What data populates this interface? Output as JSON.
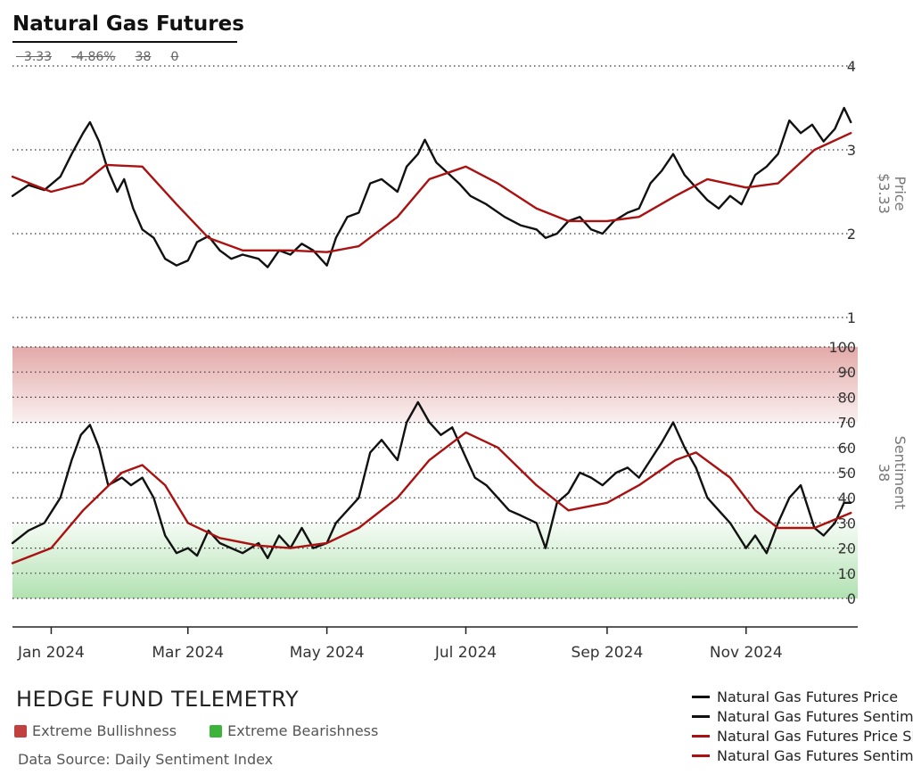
{
  "title": "Natural Gas Futures",
  "stats": [
    "3.33",
    "-4.86%",
    "38",
    "0"
  ],
  "brand": "HEDGE FUND TELEMETRY",
  "zones": [
    {
      "label": "Extreme Bullishness",
      "color": "#c0413f"
    },
    {
      "label": "Extreme Bearishness",
      "color": "#3cb43c"
    }
  ],
  "source": "Data Source: Daily Sentiment Index",
  "legend": [
    {
      "label": "Natural Gas Futures Price",
      "color": "#111111"
    },
    {
      "label": "Natural Gas Futures Sentiment",
      "color": "#111111"
    },
    {
      "label": "Natural Gas Futures Price SMA",
      "color": "#aa1111"
    },
    {
      "label": "Natural Gas Futures Sentiment SMA",
      "color": "#aa1111"
    }
  ],
  "chart_data": [
    {
      "type": "line",
      "ylabel": "Price",
      "ylabel_value": "$3.33",
      "ylim": [
        1,
        4
      ],
      "yticks": [
        1,
        2,
        3,
        4
      ],
      "x_range": [
        "2023-12-15",
        "2024-12-20"
      ],
      "grid": "dotted-horizontal",
      "series": [
        {
          "name": "Natural Gas Futures Price",
          "color": "#111111",
          "points": [
            [
              "2023-12-15",
              2.45
            ],
            [
              "2023-12-22",
              2.58
            ],
            [
              "2023-12-29",
              2.52
            ],
            [
              "2024-01-05",
              2.68
            ],
            [
              "2024-01-10",
              2.95
            ],
            [
              "2024-01-15",
              3.2
            ],
            [
              "2024-01-18",
              3.33
            ],
            [
              "2024-01-22",
              3.1
            ],
            [
              "2024-01-26",
              2.75
            ],
            [
              "2024-01-30",
              2.5
            ],
            [
              "2024-02-02",
              2.65
            ],
            [
              "2024-02-06",
              2.3
            ],
            [
              "2024-02-10",
              2.05
            ],
            [
              "2024-02-15",
              1.95
            ],
            [
              "2024-02-20",
              1.7
            ],
            [
              "2024-02-25",
              1.62
            ],
            [
              "2024-03-01",
              1.68
            ],
            [
              "2024-03-05",
              1.9
            ],
            [
              "2024-03-10",
              1.97
            ],
            [
              "2024-03-15",
              1.8
            ],
            [
              "2024-03-20",
              1.7
            ],
            [
              "2024-03-25",
              1.75
            ],
            [
              "2024-04-01",
              1.7
            ],
            [
              "2024-04-05",
              1.6
            ],
            [
              "2024-04-10",
              1.8
            ],
            [
              "2024-04-15",
              1.75
            ],
            [
              "2024-04-20",
              1.88
            ],
            [
              "2024-04-25",
              1.8
            ],
            [
              "2024-05-01",
              1.62
            ],
            [
              "2024-05-05",
              1.95
            ],
            [
              "2024-05-10",
              2.2
            ],
            [
              "2024-05-15",
              2.25
            ],
            [
              "2024-05-20",
              2.6
            ],
            [
              "2024-05-25",
              2.65
            ],
            [
              "2024-06-01",
              2.5
            ],
            [
              "2024-06-05",
              2.8
            ],
            [
              "2024-06-10",
              2.95
            ],
            [
              "2024-06-13",
              3.12
            ],
            [
              "2024-06-18",
              2.85
            ],
            [
              "2024-06-22",
              2.75
            ],
            [
              "2024-06-28",
              2.6
            ],
            [
              "2024-07-03",
              2.45
            ],
            [
              "2024-07-10",
              2.35
            ],
            [
              "2024-07-18",
              2.2
            ],
            [
              "2024-07-25",
              2.1
            ],
            [
              "2024-08-01",
              2.05
            ],
            [
              "2024-08-05",
              1.95
            ],
            [
              "2024-08-10",
              2.0
            ],
            [
              "2024-08-15",
              2.15
            ],
            [
              "2024-08-20",
              2.2
            ],
            [
              "2024-08-25",
              2.05
            ],
            [
              "2024-08-30",
              2.0
            ],
            [
              "2024-09-04",
              2.15
            ],
            [
              "2024-09-10",
              2.25
            ],
            [
              "2024-09-15",
              2.3
            ],
            [
              "2024-09-20",
              2.6
            ],
            [
              "2024-09-25",
              2.75
            ],
            [
              "2024-09-30",
              2.95
            ],
            [
              "2024-10-05",
              2.7
            ],
            [
              "2024-10-10",
              2.55
            ],
            [
              "2024-10-15",
              2.4
            ],
            [
              "2024-10-20",
              2.3
            ],
            [
              "2024-10-25",
              2.45
            ],
            [
              "2024-10-30",
              2.35
            ],
            [
              "2024-11-05",
              2.7
            ],
            [
              "2024-11-10",
              2.8
            ],
            [
              "2024-11-15",
              2.95
            ],
            [
              "2024-11-20",
              3.35
            ],
            [
              "2024-11-25",
              3.2
            ],
            [
              "2024-11-30",
              3.3
            ],
            [
              "2024-12-05",
              3.1
            ],
            [
              "2024-12-10",
              3.25
            ],
            [
              "2024-12-14",
              3.5
            ],
            [
              "2024-12-17",
              3.33
            ]
          ]
        },
        {
          "name": "Natural Gas Futures Price SMA",
          "color": "#aa1111",
          "points": [
            [
              "2023-12-15",
              2.68
            ],
            [
              "2024-01-01",
              2.5
            ],
            [
              "2024-01-15",
              2.6
            ],
            [
              "2024-01-25",
              2.82
            ],
            [
              "2024-02-10",
              2.8
            ],
            [
              "2024-02-25",
              2.35
            ],
            [
              "2024-03-10",
              1.95
            ],
            [
              "2024-03-25",
              1.8
            ],
            [
              "2024-04-15",
              1.8
            ],
            [
              "2024-05-01",
              1.78
            ],
            [
              "2024-05-15",
              1.85
            ],
            [
              "2024-06-01",
              2.2
            ],
            [
              "2024-06-15",
              2.65
            ],
            [
              "2024-07-01",
              2.8
            ],
            [
              "2024-07-15",
              2.6
            ],
            [
              "2024-08-01",
              2.3
            ],
            [
              "2024-08-15",
              2.15
            ],
            [
              "2024-09-01",
              2.15
            ],
            [
              "2024-09-15",
              2.2
            ],
            [
              "2024-10-01",
              2.45
            ],
            [
              "2024-10-15",
              2.65
            ],
            [
              "2024-11-01",
              2.55
            ],
            [
              "2024-11-15",
              2.6
            ],
            [
              "2024-12-01",
              3.0
            ],
            [
              "2024-12-17",
              3.2
            ]
          ]
        }
      ]
    },
    {
      "type": "line",
      "ylabel": "Sentiment",
      "ylabel_value": "38",
      "ylim": [
        0,
        100
      ],
      "yticks": [
        0,
        10,
        20,
        30,
        40,
        50,
        60,
        70,
        80,
        90,
        100
      ],
      "x_range": [
        "2023-12-15",
        "2024-12-20"
      ],
      "xticks": [
        [
          "2024-01-01",
          "Jan 2024"
        ],
        [
          "2024-03-01",
          "Mar 2024"
        ],
        [
          "2024-05-01",
          "May 2024"
        ],
        [
          "2024-07-01",
          "Jul 2024"
        ],
        [
          "2024-09-01",
          "Sep 2024"
        ],
        [
          "2024-11-01",
          "Nov 2024"
        ]
      ],
      "bands": [
        {
          "from": 70,
          "to": 100,
          "color": "#c0413f"
        },
        {
          "from": 0,
          "to": 30,
          "color": "#3cb43c"
        }
      ],
      "grid": "dotted-horizontal",
      "series": [
        {
          "name": "Natural Gas Futures Sentiment",
          "color": "#111111",
          "points": [
            [
              "2023-12-15",
              22
            ],
            [
              "2023-12-22",
              27
            ],
            [
              "2023-12-29",
              30
            ],
            [
              "2024-01-05",
              40
            ],
            [
              "2024-01-10",
              55
            ],
            [
              "2024-01-14",
              65
            ],
            [
              "2024-01-18",
              69
            ],
            [
              "2024-01-22",
              60
            ],
            [
              "2024-01-26",
              45
            ],
            [
              "2024-02-01",
              48
            ],
            [
              "2024-02-05",
              45
            ],
            [
              "2024-02-10",
              48
            ],
            [
              "2024-02-15",
              40
            ],
            [
              "2024-02-20",
              25
            ],
            [
              "2024-02-25",
              18
            ],
            [
              "2024-03-01",
              20
            ],
            [
              "2024-03-05",
              17
            ],
            [
              "2024-03-10",
              27
            ],
            [
              "2024-03-15",
              22
            ],
            [
              "2024-03-20",
              20
            ],
            [
              "2024-03-25",
              18
            ],
            [
              "2024-04-01",
              22
            ],
            [
              "2024-04-05",
              16
            ],
            [
              "2024-04-10",
              25
            ],
            [
              "2024-04-15",
              20
            ],
            [
              "2024-04-20",
              28
            ],
            [
              "2024-04-25",
              20
            ],
            [
              "2024-05-01",
              22
            ],
            [
              "2024-05-05",
              30
            ],
            [
              "2024-05-10",
              35
            ],
            [
              "2024-05-15",
              40
            ],
            [
              "2024-05-20",
              58
            ],
            [
              "2024-05-25",
              63
            ],
            [
              "2024-06-01",
              55
            ],
            [
              "2024-06-05",
              70
            ],
            [
              "2024-06-10",
              78
            ],
            [
              "2024-06-15",
              70
            ],
            [
              "2024-06-20",
              65
            ],
            [
              "2024-06-25",
              68
            ],
            [
              "2024-06-30",
              58
            ],
            [
              "2024-07-05",
              48
            ],
            [
              "2024-07-10",
              45
            ],
            [
              "2024-07-15",
              40
            ],
            [
              "2024-07-20",
              35
            ],
            [
              "2024-07-25",
              33
            ],
            [
              "2024-08-01",
              30
            ],
            [
              "2024-08-05",
              20
            ],
            [
              "2024-08-10",
              38
            ],
            [
              "2024-08-15",
              42
            ],
            [
              "2024-08-20",
              50
            ],
            [
              "2024-08-25",
              48
            ],
            [
              "2024-08-30",
              45
            ],
            [
              "2024-09-05",
              50
            ],
            [
              "2024-09-10",
              52
            ],
            [
              "2024-09-15",
              48
            ],
            [
              "2024-09-20",
              55
            ],
            [
              "2024-09-25",
              62
            ],
            [
              "2024-09-30",
              70
            ],
            [
              "2024-10-05",
              60
            ],
            [
              "2024-10-10",
              52
            ],
            [
              "2024-10-15",
              40
            ],
            [
              "2024-10-20",
              35
            ],
            [
              "2024-10-25",
              30
            ],
            [
              "2024-11-01",
              20
            ],
            [
              "2024-11-05",
              25
            ],
            [
              "2024-11-10",
              18
            ],
            [
              "2024-11-15",
              30
            ],
            [
              "2024-11-20",
              40
            ],
            [
              "2024-11-25",
              45
            ],
            [
              "2024-12-01",
              28
            ],
            [
              "2024-12-05",
              25
            ],
            [
              "2024-12-10",
              30
            ],
            [
              "2024-12-14",
              38
            ],
            [
              "2024-12-17",
              38
            ]
          ]
        },
        {
          "name": "Natural Gas Futures Sentiment SMA",
          "color": "#aa1111",
          "points": [
            [
              "2023-12-15",
              14
            ],
            [
              "2024-01-01",
              20
            ],
            [
              "2024-01-15",
              35
            ],
            [
              "2024-02-01",
              50
            ],
            [
              "2024-02-10",
              53
            ],
            [
              "2024-02-20",
              45
            ],
            [
              "2024-03-01",
              30
            ],
            [
              "2024-03-15",
              24
            ],
            [
              "2024-04-01",
              21
            ],
            [
              "2024-04-15",
              20
            ],
            [
              "2024-05-01",
              22
            ],
            [
              "2024-05-15",
              28
            ],
            [
              "2024-06-01",
              40
            ],
            [
              "2024-06-15",
              55
            ],
            [
              "2024-07-01",
              66
            ],
            [
              "2024-07-15",
              60
            ],
            [
              "2024-08-01",
              45
            ],
            [
              "2024-08-15",
              35
            ],
            [
              "2024-09-01",
              38
            ],
            [
              "2024-09-15",
              45
            ],
            [
              "2024-10-01",
              55
            ],
            [
              "2024-10-10",
              58
            ],
            [
              "2024-10-25",
              48
            ],
            [
              "2024-11-05",
              35
            ],
            [
              "2024-11-15",
              28
            ],
            [
              "2024-12-01",
              28
            ],
            [
              "2024-12-17",
              34
            ]
          ]
        }
      ]
    }
  ]
}
